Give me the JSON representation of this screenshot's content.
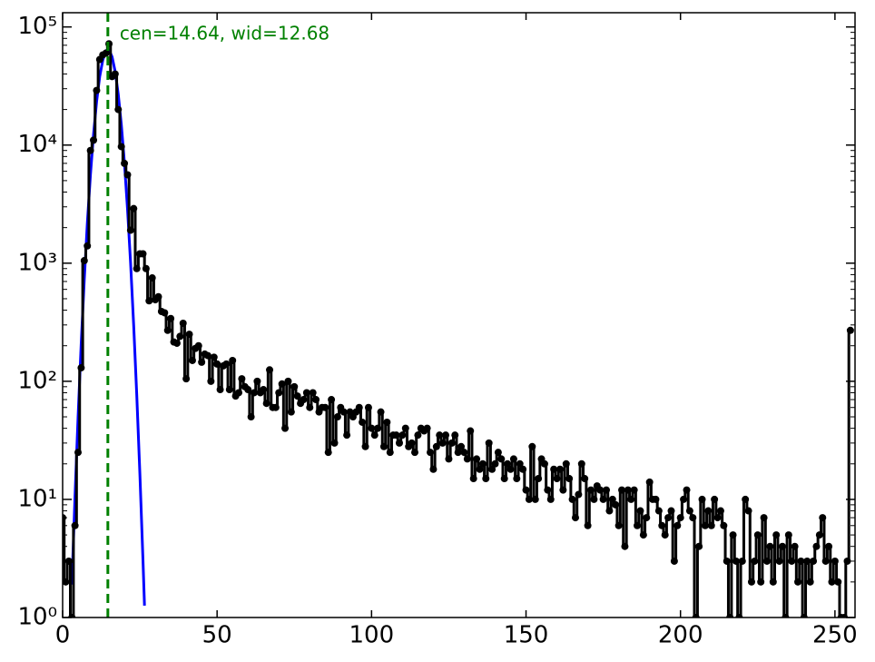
{
  "chart_data": {
    "type": "step-scatter",
    "ylog": true,
    "xlim": [
      0,
      256.5
    ],
    "ylim": [
      1,
      132000
    ],
    "xticks": [
      0,
      50,
      100,
      150,
      200,
      250
    ],
    "yticks": [
      {
        "value": 1,
        "label": "10⁰"
      },
      {
        "value": 10,
        "label": "10¹"
      },
      {
        "value": 100,
        "label": "10²"
      },
      {
        "value": 1000,
        "label": "10³"
      },
      {
        "value": 10000,
        "label": "10⁴"
      },
      {
        "value": 100000,
        "label": "10⁵"
      }
    ],
    "annotation": "cen=14.64, wid=12.68",
    "vline": {
      "x": 14.64,
      "color": "#008000"
    },
    "series": [
      {
        "color": "#000000",
        "x": [
          0,
          1,
          2,
          3,
          4,
          5,
          6,
          7,
          8,
          9,
          10,
          11,
          12,
          13,
          14,
          15,
          16,
          17,
          18,
          19,
          20,
          21,
          22,
          23,
          24,
          25,
          26,
          27,
          28,
          29,
          30,
          31,
          32,
          33,
          34,
          35,
          36,
          37,
          38,
          39,
          40,
          41,
          42,
          43,
          44,
          45,
          46,
          47,
          48,
          49,
          50,
          51,
          52,
          53,
          54,
          55,
          56,
          57,
          58,
          59,
          60,
          61,
          62,
          63,
          64,
          65,
          66,
          67,
          68,
          69,
          70,
          71,
          72,
          73,
          74,
          75,
          76,
          77,
          78,
          79,
          80,
          81,
          82,
          83,
          84,
          85,
          86,
          87,
          88,
          89,
          90,
          91,
          92,
          93,
          94,
          95,
          96,
          97,
          98,
          99,
          100,
          101,
          102,
          103,
          104,
          105,
          106,
          107,
          108,
          109,
          110,
          111,
          112,
          113,
          114,
          115,
          116,
          117,
          118,
          119,
          120,
          121,
          122,
          123,
          124,
          125,
          126,
          127,
          128,
          129,
          130,
          131,
          132,
          133,
          134,
          135,
          136,
          137,
          138,
          139,
          140,
          141,
          142,
          143,
          144,
          145,
          146,
          147,
          148,
          149,
          150,
          151,
          152,
          153,
          154,
          155,
          156,
          157,
          158,
          159,
          160,
          161,
          162,
          163,
          164,
          165,
          166,
          167,
          168,
          169,
          170,
          171,
          172,
          173,
          174,
          175,
          176,
          177,
          178,
          179,
          180,
          181,
          182,
          183,
          184,
          185,
          186,
          187,
          188,
          189,
          190,
          191,
          192,
          193,
          194,
          195,
          196,
          197,
          198,
          199,
          200,
          201,
          202,
          203,
          204,
          205,
          206,
          207,
          208,
          209,
          210,
          211,
          212,
          213,
          214,
          215,
          216,
          217,
          218,
          219,
          220,
          221,
          222,
          223,
          224,
          225,
          226,
          227,
          228,
          229,
          230,
          231,
          232,
          233,
          234,
          235,
          236,
          237,
          238,
          239,
          240,
          241,
          242,
          243,
          244,
          245,
          246,
          247,
          248,
          249,
          250,
          251,
          252,
          253,
          254,
          255
        ],
        "values": [
          7,
          2,
          3,
          1,
          6,
          25,
          130,
          1050,
          1400,
          9000,
          11000,
          29000,
          53000,
          58000,
          60000,
          72000,
          38000,
          40000,
          20000,
          9700,
          7000,
          5600,
          1900,
          2900,
          900,
          1200,
          1200,
          900,
          480,
          750,
          490,
          520,
          390,
          380,
          270,
          340,
          215,
          210,
          240,
          310,
          105,
          250,
          150,
          190,
          200,
          145,
          170,
          165,
          100,
          160,
          140,
          85,
          135,
          140,
          85,
          150,
          75,
          80,
          105,
          90,
          85,
          50,
          80,
          100,
          80,
          85,
          65,
          125,
          60,
          60,
          80,
          95,
          40,
          100,
          55,
          90,
          75,
          65,
          70,
          80,
          60,
          80,
          70,
          55,
          60,
          60,
          25,
          70,
          30,
          50,
          60,
          55,
          35,
          55,
          50,
          55,
          60,
          45,
          28,
          60,
          40,
          35,
          40,
          55,
          28,
          45,
          25,
          35,
          35,
          30,
          35,
          40,
          28,
          30,
          25,
          35,
          40,
          38,
          40,
          25,
          18,
          28,
          35,
          30,
          35,
          22,
          30,
          35,
          25,
          28,
          25,
          22,
          38,
          15,
          22,
          18,
          20,
          15,
          30,
          18,
          20,
          25,
          22,
          15,
          20,
          18,
          22,
          15,
          20,
          18,
          12,
          10,
          28,
          10,
          15,
          22,
          20,
          12,
          10,
          18,
          15,
          18,
          12,
          20,
          15,
          10,
          7,
          11,
          20,
          15,
          6,
          12,
          10,
          13,
          12,
          10,
          12,
          8,
          10,
          9,
          6,
          12,
          4,
          12,
          10,
          12,
          6,
          8,
          5,
          7,
          14,
          10,
          10,
          8,
          6,
          5,
          7,
          8,
          3,
          6,
          7,
          10,
          12,
          8,
          7,
          1,
          4,
          10,
          6,
          8,
          6,
          10,
          7,
          8,
          6,
          3,
          1,
          5,
          3,
          1,
          3,
          10,
          8,
          2,
          3,
          5,
          2,
          7,
          3,
          4,
          2,
          5,
          3,
          4,
          1,
          5,
          3,
          4,
          2,
          3,
          1,
          3,
          2,
          3,
          4,
          5,
          7,
          3,
          4,
          2,
          3,
          2,
          1,
          1,
          3,
          270
        ]
      }
    ],
    "fit": {
      "color": "#0000ff",
      "x": [
        3,
        4,
        5,
        6,
        7,
        8,
        9,
        10,
        11,
        12,
        13,
        14,
        14.64,
        15,
        16,
        17,
        18,
        19,
        20,
        21,
        22,
        23,
        24,
        25,
        26,
        26.5
      ],
      "values": [
        1.9,
        10.5,
        50,
        205,
        720,
        2190,
        5600,
        12300,
        23400,
        38000,
        52500,
        62700,
        64600,
        64000,
        56000,
        42000,
        27000,
        14900,
        7100,
        2890,
        1000,
        297,
        76,
        16.6,
        3.1,
        1.26
      ]
    }
  }
}
